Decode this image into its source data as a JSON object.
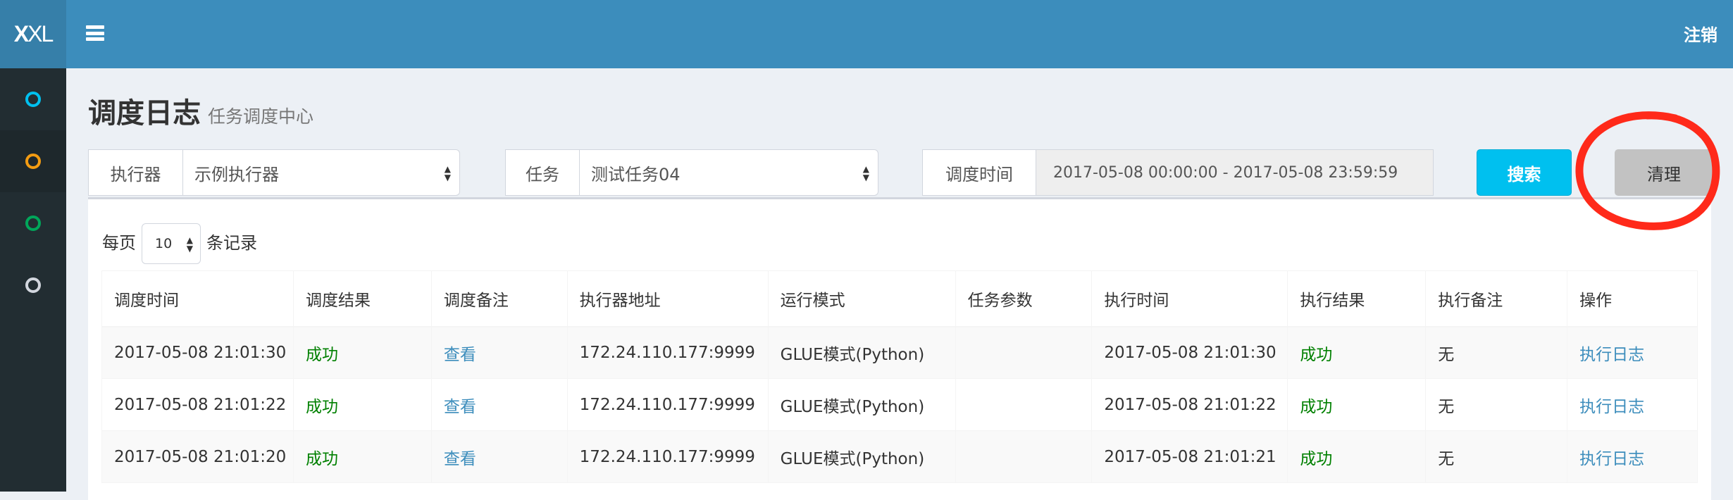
{
  "header": {
    "logo_bold": "X",
    "logo_rest": "XL",
    "logout": "注销"
  },
  "sidebar": {
    "items": [
      {
        "color": "#00c0ef"
      },
      {
        "color": "#f39c12",
        "active": true
      },
      {
        "color": "#00a65a"
      },
      {
        "color": "#d2d6de"
      }
    ]
  },
  "page": {
    "title": "调度日志",
    "subtitle": "任务调度中心"
  },
  "filters": {
    "executor_label": "执行器",
    "executor_value": "示例执行器",
    "task_label": "任务",
    "task_value": "测试任务04",
    "time_label": "调度时间",
    "time_value": "2017-05-08 00:00:00 - 2017-05-08 23:59:59",
    "search": "搜索",
    "clear": "清理"
  },
  "pager": {
    "prefix": "每页",
    "value": "10",
    "suffix": "条记录"
  },
  "table": {
    "columns": [
      "调度时间",
      "调度结果",
      "调度备注",
      "执行器地址",
      "运行模式",
      "任务参数",
      "执行时间",
      "执行结果",
      "执行备注",
      "操作"
    ],
    "rows": [
      [
        "2017-05-08 21:01:30",
        "成功",
        "查看",
        "172.24.110.177:9999",
        "GLUE模式(Python)",
        "",
        "2017-05-08 21:01:30",
        "成功",
        "无",
        "执行日志"
      ],
      [
        "2017-05-08 21:01:22",
        "成功",
        "查看",
        "172.24.110.177:9999",
        "GLUE模式(Python)",
        "",
        "2017-05-08 21:01:22",
        "成功",
        "无",
        "执行日志"
      ],
      [
        "2017-05-08 21:01:20",
        "成功",
        "查看",
        "172.24.110.177:9999",
        "GLUE模式(Python)",
        "",
        "2017-05-08 21:01:21",
        "成功",
        "无",
        "执行日志"
      ]
    ]
  },
  "colors": {
    "header": "#3c8dbc",
    "sidebar": "#222d32",
    "success": "#008000",
    "link": "#3c8dbc",
    "search_button": "#00c0ef",
    "annotation": "#ff2a1a"
  }
}
